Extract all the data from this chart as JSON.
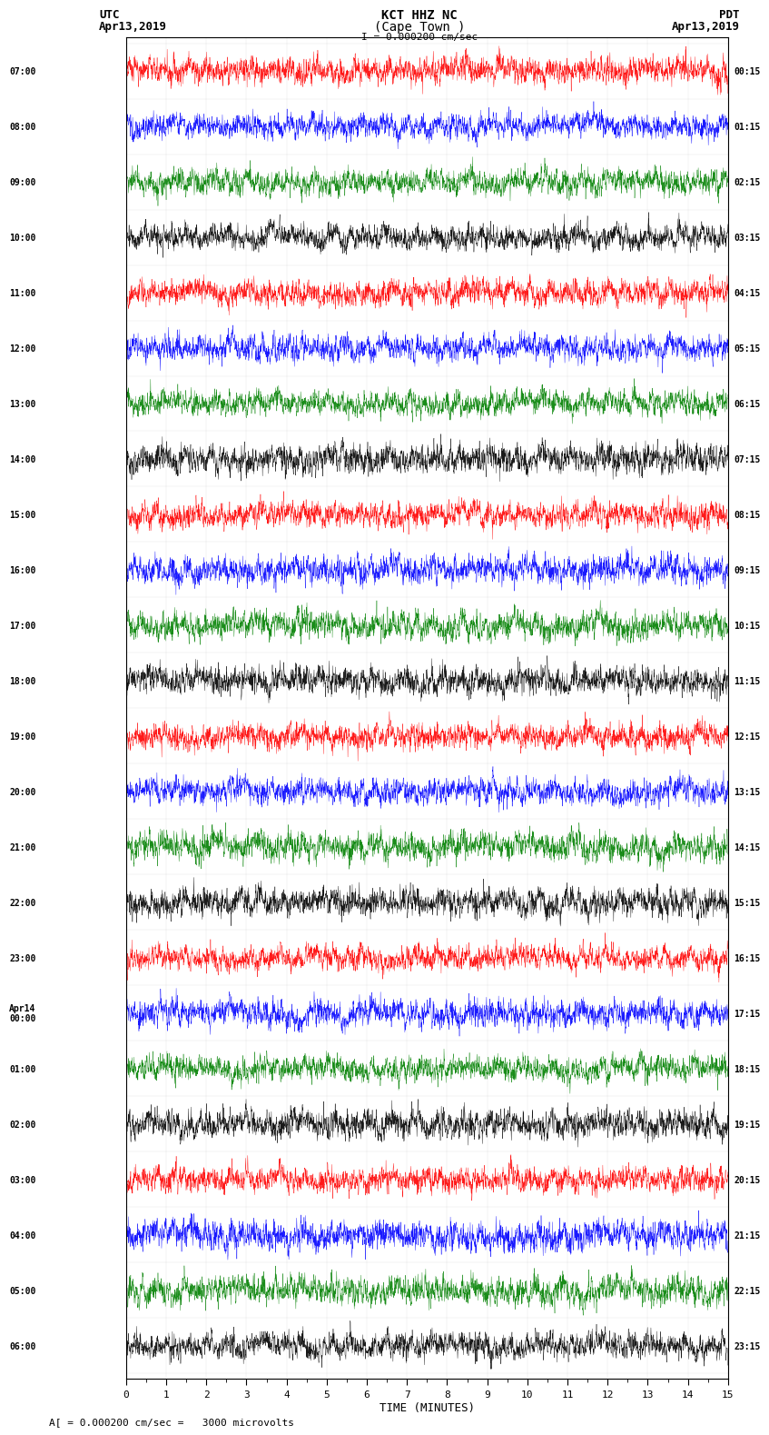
{
  "title_line1": "KCT HHZ NC",
  "title_line2": "(Cape Town )",
  "title_scale": "I = 0.000200 cm/sec",
  "left_label_line1": "UTC",
  "left_label_line2": "Apr13,2019",
  "right_label_line1": "PDT",
  "right_label_line2": "Apr13,2019",
  "bottom_label": "TIME (MINUTES)",
  "bottom_note": "A[ = 0.000200 cm/sec =   3000 microvolts",
  "xlabel_ticks": [
    0,
    1,
    2,
    3,
    4,
    5,
    6,
    7,
    8,
    9,
    10,
    11,
    12,
    13,
    14,
    15
  ],
  "left_times": [
    "07:00",
    "08:00",
    "09:00",
    "10:00",
    "11:00",
    "12:00",
    "13:00",
    "14:00",
    "15:00",
    "16:00",
    "17:00",
    "18:00",
    "19:00",
    "20:00",
    "21:00",
    "22:00",
    "23:00",
    "Apr14\n00:00",
    "01:00",
    "02:00",
    "03:00",
    "04:00",
    "05:00",
    "06:00"
  ],
  "right_times": [
    "00:15",
    "01:15",
    "02:15",
    "03:15",
    "04:15",
    "05:15",
    "06:15",
    "07:15",
    "08:15",
    "09:15",
    "10:15",
    "11:15",
    "12:15",
    "13:15",
    "14:15",
    "15:15",
    "16:15",
    "17:15",
    "18:15",
    "19:15",
    "20:15",
    "21:15",
    "22:15",
    "23:15"
  ],
  "n_traces": 24,
  "n_minutes": 15,
  "samples_per_minute": 200,
  "colors": [
    "red",
    "blue",
    "green",
    "black"
  ],
  "bg_color": "white",
  "trace_amplitude": 0.45,
  "figsize": [
    8.5,
    16.13
  ],
  "dpi": 100
}
